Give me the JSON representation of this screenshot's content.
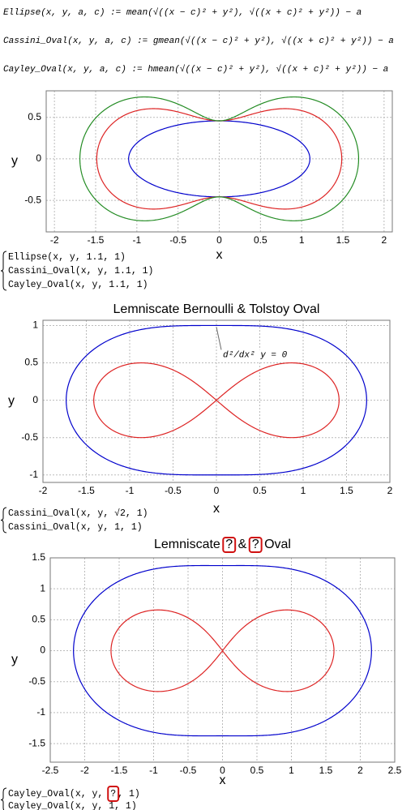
{
  "definitions": [
    "Ellipse(x, y, a, c) := mean(√((x − c)² + y²), √((x + c)² + y²)) − a",
    "Cassini_Oval(x, y, a, c) := gmean(√((x − c)² + y²), √((x + c)² + y²)) − a",
    "Cayley_Oval(x, y, a, c) := hmean(√((x − c)² + y²), √((x + c)² + y²)) − a"
  ],
  "chart_data": [
    {
      "type": "implicit",
      "title": null,
      "x_label": "x",
      "y_label": "y",
      "xlim": [
        -2.1,
        2.1
      ],
      "ylim": [
        -0.88,
        0.82
      ],
      "xticks": [
        -2,
        -1.5,
        -1,
        -0.5,
        0,
        0.5,
        1,
        1.5,
        2
      ],
      "yticks": [
        -0.5,
        0,
        0.5
      ],
      "grid": true,
      "curves": [
        {
          "type": "ellipse",
          "a": 1.1,
          "c": 1,
          "color": "#0000cc",
          "label": [
            {
              "text": "Ellipse(x, y, 1.1, 1)"
            }
          ]
        },
        {
          "type": "cassini",
          "a": 1.1,
          "c": 1,
          "color": "#dd2222",
          "label": [
            {
              "text": "Cassini_Oval(x, y, 1.1, 1)"
            }
          ]
        },
        {
          "type": "cayley",
          "a": 1.1,
          "c": 1,
          "color": "#228b22",
          "label": [
            {
              "text": "Cayley_Oval(x, y, 1.1, 1)"
            }
          ]
        }
      ]
    },
    {
      "type": "implicit",
      "title": [
        {
          "text": "Lemniscate Bernoulli & Tolstoy Oval"
        }
      ],
      "x_label": "x",
      "y_label": "y",
      "xlim": [
        -2,
        2
      ],
      "ylim": [
        -1.1,
        1.07
      ],
      "xticks": [
        -2,
        -1.5,
        -1,
        -0.5,
        0,
        0.5,
        1,
        1.5,
        2
      ],
      "yticks": [
        -1,
        -0.5,
        0,
        0.5,
        1
      ],
      "grid": true,
      "annotation": "d²/dx² y = 0",
      "curves": [
        {
          "type": "cassini",
          "a": 1.41421356,
          "c": 1,
          "color": "#0000cc",
          "label": [
            {
              "text": "Cassini_Oval(x, y, √2, 1)"
            }
          ]
        },
        {
          "type": "cassini",
          "a": 1,
          "c": 1,
          "color": "#dd2222",
          "label": [
            {
              "text": "Cassini_Oval(x, y, 1, 1)"
            }
          ]
        }
      ]
    },
    {
      "type": "implicit",
      "title": [
        {
          "text": "Lemniscate "
        },
        {
          "text": "?",
          "boxed": true
        },
        {
          "text": " & "
        },
        {
          "text": "?",
          "boxed": true
        },
        {
          "text": " Oval"
        }
      ],
      "x_label": "x",
      "y_label": "y",
      "xlim": [
        -2.5,
        2.5
      ],
      "ylim": [
        -1.8,
        1.5
      ],
      "xticks": [
        -2.5,
        -2,
        -1.5,
        -1,
        -0.5,
        0,
        0.5,
        1,
        1.5,
        2,
        2.5
      ],
      "yticks": [
        -1.5,
        -1,
        -0.5,
        0,
        0.5,
        1,
        1.5
      ],
      "grid": true,
      "curves": [
        {
          "type": "cayley",
          "a": 1.7,
          "c": 1,
          "color": "#0000cc",
          "label": [
            {
              "text": "Cayley_Oval(x, y, "
            },
            {
              "text": "?",
              "boxed": true
            },
            {
              "text": ", 1)"
            }
          ]
        },
        {
          "type": "cayley",
          "a": 1,
          "c": 1,
          "color": "#dd2222",
          "label": [
            {
              "text": "Cayley_Oval(x, y, 1, 1)"
            }
          ]
        }
      ]
    }
  ]
}
